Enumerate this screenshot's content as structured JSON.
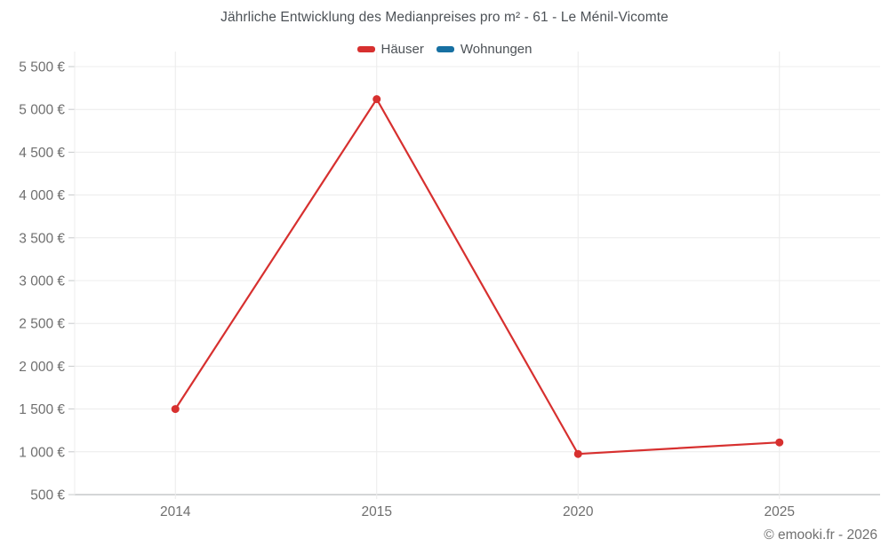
{
  "page": {
    "title": "Jährliche Entwicklung des Medianpreises pro m² - 61 - Le Ménil-Vicomte",
    "copyright": "© emooki.fr - 2026"
  },
  "legend": {
    "items": [
      {
        "label": "Häuser",
        "color": "#d7302f"
      },
      {
        "label": "Wohnungen",
        "color": "#1770a2"
      }
    ]
  },
  "chart_data": {
    "type": "line",
    "title": "Jährliche Entwicklung des Medianpreises pro m² - 61 - Le Ménil-Vicomte",
    "categories": [
      "2014",
      "2015",
      "2020",
      "2025"
    ],
    "series": [
      {
        "name": "Häuser",
        "color": "#d7302f",
        "values": [
          1500,
          5120,
          975,
          1110
        ]
      },
      {
        "name": "Wohnungen",
        "color": "#1770a2",
        "values": []
      }
    ],
    "xlabel": "",
    "ylabel": "",
    "y_axis": {
      "min": 500,
      "max": 5500,
      "step": 500,
      "tick_labels": [
        "500 €",
        "1 000 €",
        "1 500 €",
        "2 000 €",
        "2 500 €",
        "3 000 €",
        "3 500 €",
        "4 000 €",
        "4 500 €",
        "5 000 €",
        "5 500 €"
      ]
    },
    "grid": true,
    "legend_position": "top",
    "currency": "€"
  },
  "colors": {
    "gridline": "#ececec",
    "axis_line": "#c6c8ca",
    "tick_label": "#6f6f6f"
  }
}
